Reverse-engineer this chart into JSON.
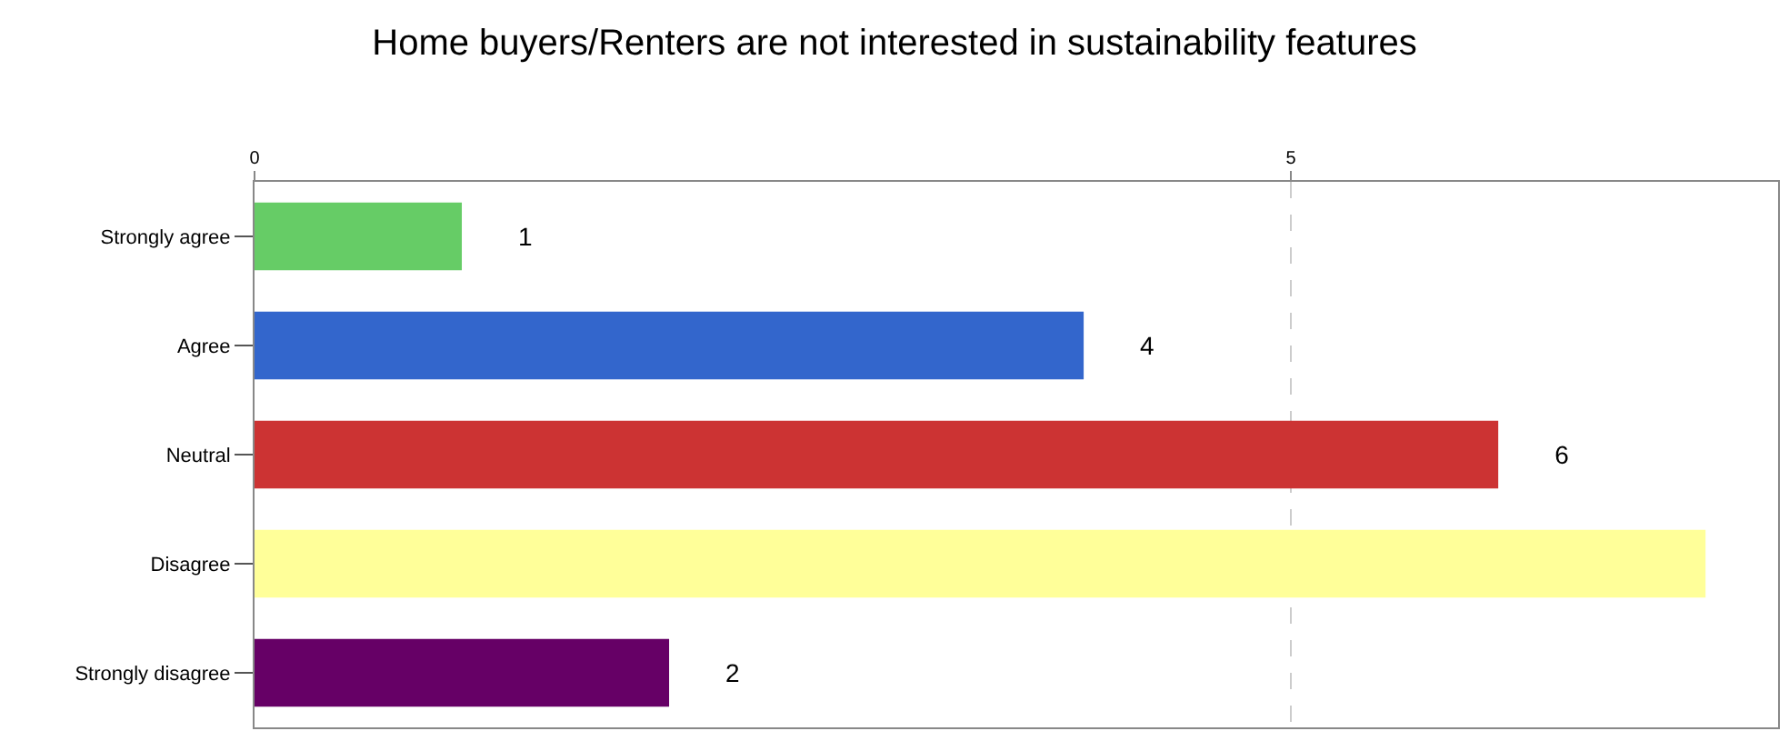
{
  "chart_data": {
    "type": "bar",
    "orientation": "horizontal",
    "title": "Home buyers/Renters are not interested in sustainability features",
    "categories": [
      "Strongly agree",
      "Agree",
      "Neutral",
      "Disagree",
      "Strongly disagree"
    ],
    "values": [
      1,
      4,
      6,
      7,
      2
    ],
    "colors": [
      "#66cc66",
      "#3366cc",
      "#cc3333",
      "#ffff99",
      "#660066"
    ],
    "value_labels": [
      "1",
      "4",
      "6",
      null,
      "2"
    ],
    "xlim": [
      0,
      7.35
    ],
    "xticks": [
      0,
      5
    ],
    "grid": "x"
  }
}
